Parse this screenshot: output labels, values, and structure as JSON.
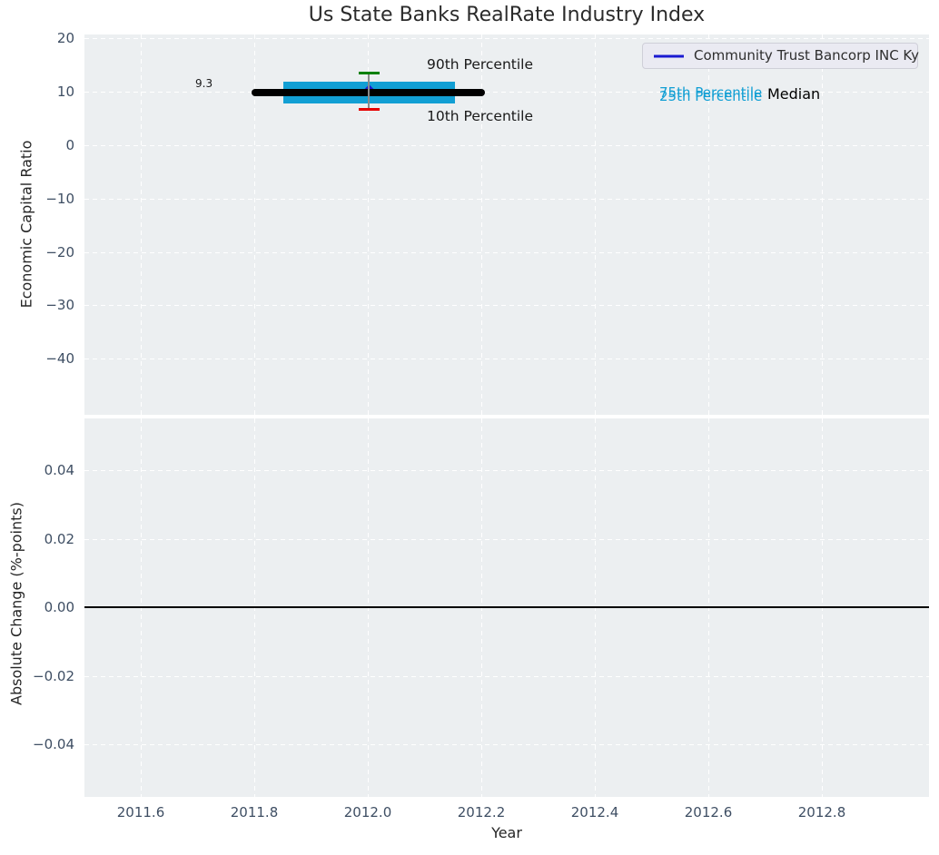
{
  "title": "Us State Banks RealRate Industry Index",
  "colors": {
    "axes_background": "#eceff1",
    "grid": "#ffffff",
    "tick_label": "#3e4e63",
    "median_line": "#000000",
    "iqr_band": "#129fd4",
    "p90_cap": "#008000",
    "p10_cap": "#e60000",
    "company_marker": "#1a1ad1",
    "zero_line": "#000000"
  },
  "top_axes": {
    "ylabel": "Economic Capital Ratio",
    "yticks": [
      "20",
      "10",
      "0",
      "−10",
      "−20",
      "−30",
      "−40"
    ],
    "annotations": {
      "median_value": "9.3",
      "p90_label": "90th Percentile",
      "p10_label": "10th Percentile",
      "p75_label": "75th Percentile",
      "p25_label": "25th Percentile",
      "median_label": "Median"
    },
    "legend": {
      "label": "Community Trust Bancorp INC Ky"
    }
  },
  "bottom_axes": {
    "ylabel": "Absolute Change (%-points)",
    "xlabel": "Year",
    "yticks": [
      "0.04",
      "0.02",
      "0.00",
      "−0.02",
      "−0.04"
    ],
    "xticks": [
      "2011.6",
      "2011.8",
      "2012.0",
      "2012.2",
      "2012.4",
      "2012.6",
      "2012.8"
    ]
  },
  "chart_data": [
    {
      "type": "line",
      "panel": "top",
      "title": "Us State Banks RealRate Industry Index",
      "ylabel": "Economic Capital Ratio",
      "xlabel": "",
      "xlim": [
        2011.5,
        2012.99
      ],
      "ylim": [
        -50.5,
        20.8
      ],
      "xticks": [
        2011.6,
        2011.8,
        2012.0,
        2012.2,
        2012.4,
        2012.6,
        2012.8
      ],
      "yticks": [
        20,
        10,
        0,
        -10,
        -20,
        -30,
        -40
      ],
      "grid": true,
      "legend_position": "upper right",
      "series": [
        {
          "name": "Median",
          "type": "line",
          "color": "#000000",
          "linewidth": 8,
          "x": [
            2011.8,
            2012.2
          ],
          "y": [
            9.3,
            9.3
          ],
          "annotation": "9.3"
        },
        {
          "name": "25th-75th Percentile band",
          "type": "area",
          "color": "#129fd4",
          "x": [
            2011.85,
            2012.15
          ],
          "y_low": 8.0,
          "y_high": 11.1
        },
        {
          "name": "90th Percentile",
          "type": "errorbar-cap",
          "color": "#008000",
          "x": 2012.0,
          "y": 13.4
        },
        {
          "name": "10th Percentile",
          "type": "errorbar-cap",
          "color": "#e60000",
          "x": 2012.0,
          "y": 6.6
        },
        {
          "name": "Community Trust Bancorp INC Ky",
          "type": "scatter",
          "marker": "diamond",
          "color": "#1a1ad1",
          "x": 2012.0,
          "y": 10.3
        }
      ]
    },
    {
      "type": "line",
      "panel": "bottom",
      "title": "",
      "ylabel": "Absolute Change (%-points)",
      "xlabel": "Year",
      "xlim": [
        2011.5,
        2012.99
      ],
      "ylim": [
        -0.055,
        0.055
      ],
      "xticks": [
        2011.6,
        2011.8,
        2012.0,
        2012.2,
        2012.4,
        2012.6,
        2012.8
      ],
      "yticks": [
        0.04,
        0.02,
        0.0,
        -0.02,
        -0.04
      ],
      "grid": true,
      "series": [],
      "reference_line": {
        "y": 0.0,
        "color": "#000000"
      }
    }
  ]
}
